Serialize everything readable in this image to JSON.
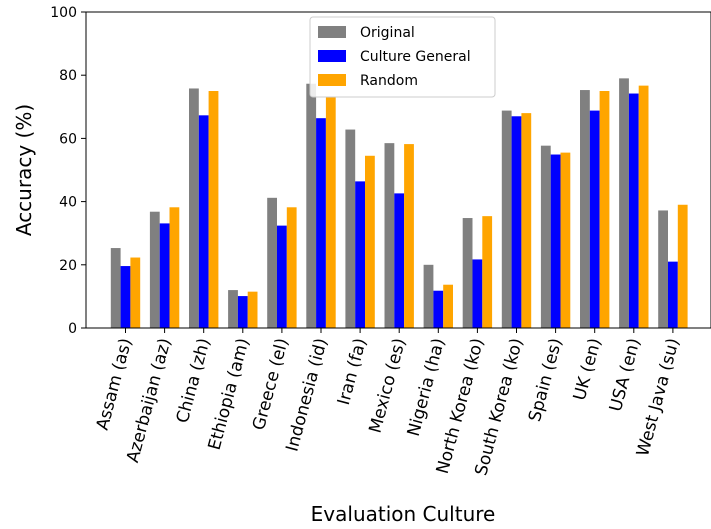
{
  "chart_data": {
    "type": "bar",
    "title": "",
    "xlabel": "Evaluation Culture",
    "ylabel": "Accuracy (%)",
    "ylim": [
      0,
      100
    ],
    "yticks": [
      0,
      20,
      40,
      60,
      80,
      100
    ],
    "grid": false,
    "legend_position": "top-center",
    "categories": [
      "Assam (as)",
      "Azerbaijan (az)",
      "China (zh)",
      "Ethiopia (am)",
      "Greece (el)",
      "Indonesia (id)",
      "Iran (fa)",
      "Mexico (es)",
      "Nigeria (ha)",
      "North Korea (ko)",
      "South Korea (ko)",
      "Spain (es)",
      "UK (en)",
      "USA (en)",
      "West Java (su)"
    ],
    "series": [
      {
        "name": "Original",
        "color": "#808080",
        "values": [
          25.3,
          36.8,
          75.8,
          12.0,
          41.2,
          77.3,
          62.8,
          58.5,
          20.0,
          34.8,
          68.8,
          57.7,
          75.3,
          79.0,
          37.2
        ]
      },
      {
        "name": "Culture General",
        "color": "#0000ff",
        "values": [
          19.6,
          33.1,
          67.3,
          10.1,
          32.4,
          66.4,
          46.4,
          42.6,
          11.8,
          21.7,
          67.0,
          54.9,
          68.8,
          74.2,
          21.0
        ]
      },
      {
        "name": "Random",
        "color": "#ffa500",
        "values": [
          22.3,
          38.2,
          75.0,
          11.5,
          38.2,
          73.0,
          54.5,
          58.2,
          13.7,
          35.4,
          68.0,
          55.5,
          75.0,
          76.7,
          39.0
        ]
      }
    ]
  }
}
